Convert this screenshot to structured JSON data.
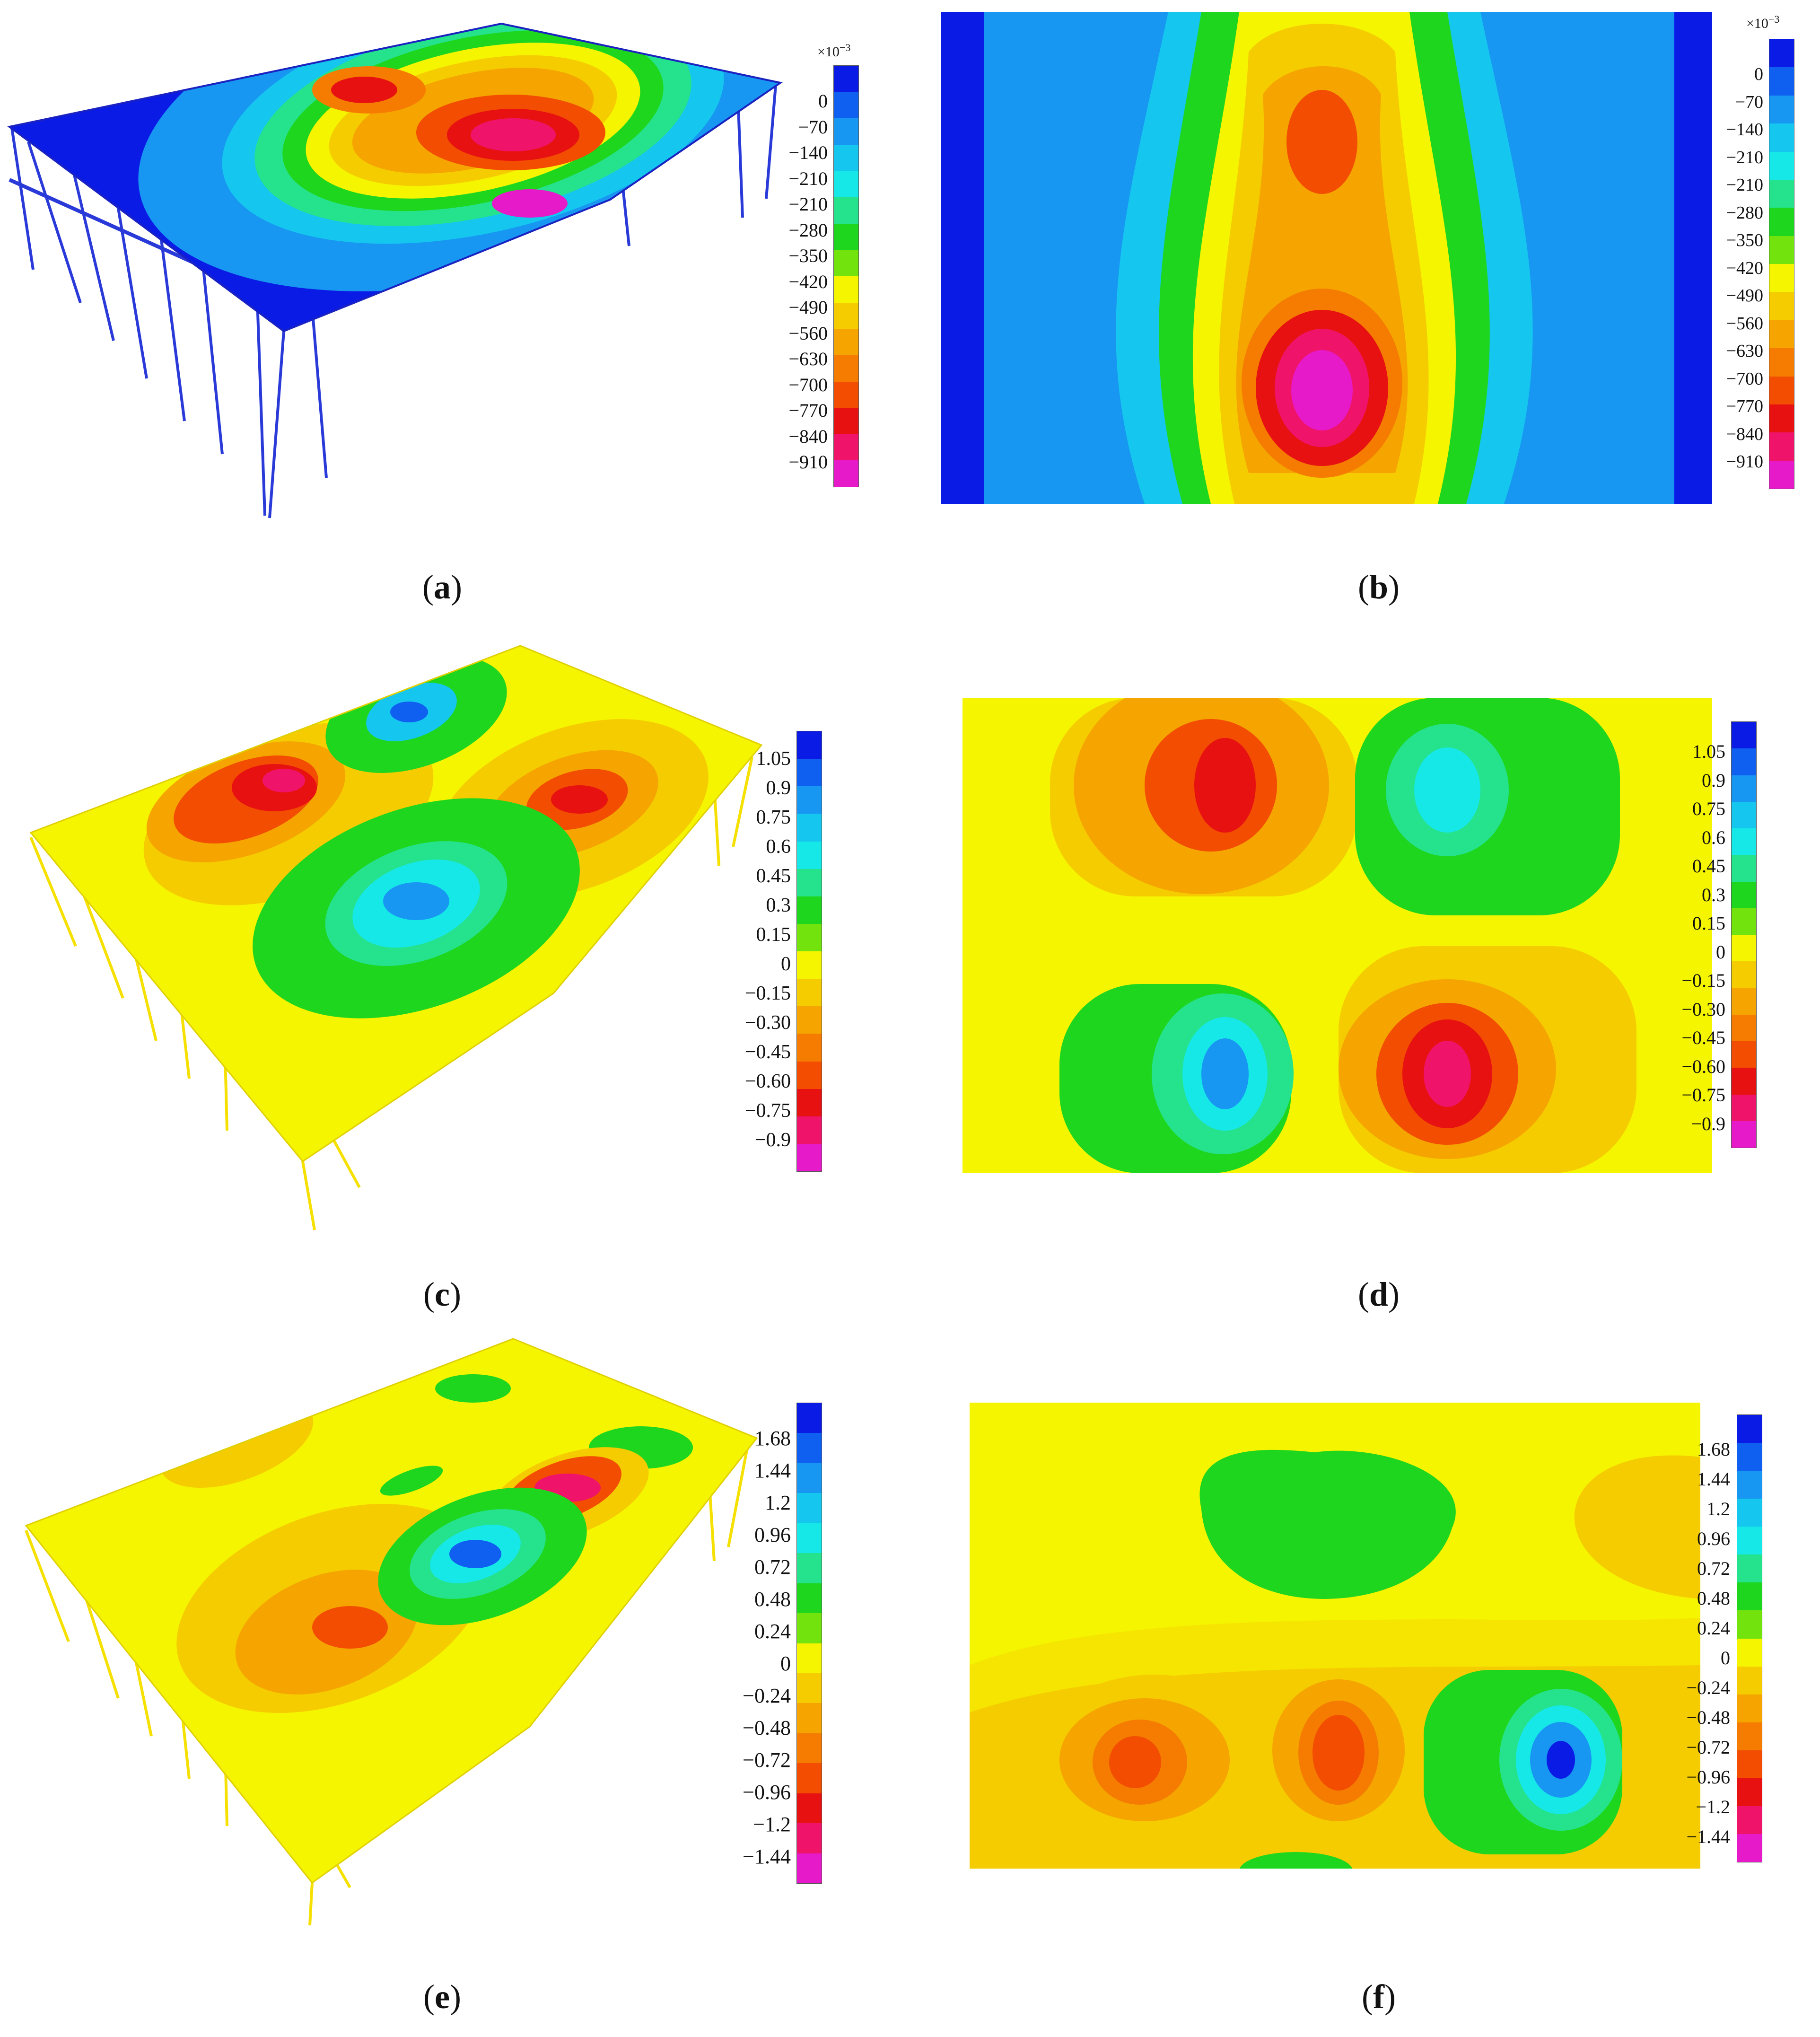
{
  "colors": {
    "scale": [
      "#0a1be6",
      "#0f5ff0",
      "#1796f2",
      "#15c6ef",
      "#16e8e8",
      "#25e28c",
      "#1ed61e",
      "#72e30d",
      "#f5f500",
      "#f5cc00",
      "#f5a400",
      "#f57c00",
      "#f24d00",
      "#e81111",
      "#f0136a",
      "#e61ac8"
    ]
  },
  "panels": [
    {
      "id": "a",
      "caption": "a",
      "multiplier": "×10",
      "multiplier_exp": "−3",
      "ticks": [
        "0",
        "−70",
        "−140",
        "−210",
        "−210",
        "−280",
        "−350",
        "−420",
        "−490",
        "−560",
        "−630",
        "−700",
        "−770",
        "−840",
        "−910"
      ]
    },
    {
      "id": "b",
      "caption": "b",
      "multiplier": "×10",
      "multiplier_exp": "−3",
      "ticks": [
        "0",
        "−70",
        "−140",
        "−210",
        "−210",
        "−280",
        "−350",
        "−420",
        "−490",
        "−560",
        "−630",
        "−700",
        "−770",
        "−840",
        "−910"
      ]
    },
    {
      "id": "c",
      "caption": "c",
      "ticks": [
        "1.05",
        "0.9",
        "0.75",
        "0.6",
        "0.45",
        "0.3",
        "0.15",
        "0",
        "−0.15",
        "−0.30",
        "−0.45",
        "−0.60",
        "−0.75",
        "−0.9"
      ]
    },
    {
      "id": "d",
      "caption": "d",
      "ticks": [
        "1.05",
        "0.9",
        "0.75",
        "0.6",
        "0.45",
        "0.3",
        "0.15",
        "0",
        "−0.15",
        "−0.30",
        "−0.45",
        "−0.60",
        "−0.75",
        "−0.9"
      ]
    },
    {
      "id": "e",
      "caption": "e",
      "ticks": [
        "1.68",
        "1.44",
        "1.2",
        "0.96",
        "0.72",
        "0.48",
        "0.24",
        "0",
        "−0.24",
        "−0.48",
        "−0.72",
        "−0.96",
        "−1.2",
        "−1.44"
      ]
    },
    {
      "id": "f",
      "caption": "f",
      "ticks": [
        "1.68",
        "1.44",
        "1.2",
        "0.96",
        "0.72",
        "0.48",
        "0.24",
        "0",
        "−0.24",
        "−0.48",
        "−0.72",
        "−0.96",
        "−1.2",
        "−1.44"
      ]
    }
  ]
}
